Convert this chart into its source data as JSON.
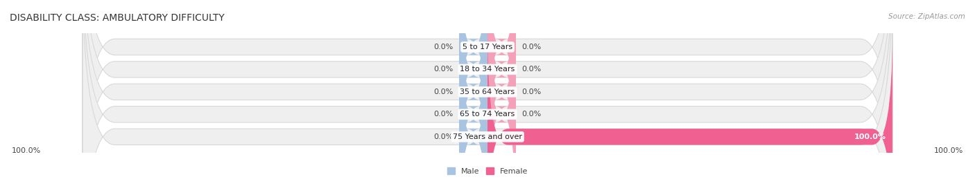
{
  "title": "DISABILITY CLASS: AMBULATORY DIFFICULTY",
  "source": "Source: ZipAtlas.com",
  "categories": [
    "5 to 17 Years",
    "18 to 34 Years",
    "35 to 64 Years",
    "65 to 74 Years",
    "75 Years and over"
  ],
  "male_values": [
    0.0,
    0.0,
    0.0,
    0.0,
    0.0
  ],
  "female_values": [
    0.0,
    0.0,
    0.0,
    0.0,
    100.0
  ],
  "male_color": "#a8c4e0",
  "female_color": "#f4a0b8",
  "female_color_full": "#f06090",
  "bar_bg_color": "#efefef",
  "bar_bg_color2": "#e8e8ec",
  "bar_outline_color": "#d8d8d8",
  "axis_label_left": "100.0%",
  "axis_label_right": "100.0%",
  "legend_male": "Male",
  "legend_female": "Female",
  "title_fontsize": 10,
  "source_fontsize": 7.5,
  "label_fontsize": 8,
  "category_fontsize": 8,
  "value_label_fontsize": 8,
  "background_color": "#ffffff",
  "max_value": 100.0,
  "stub_size": 7.0,
  "bar_height": 0.72
}
